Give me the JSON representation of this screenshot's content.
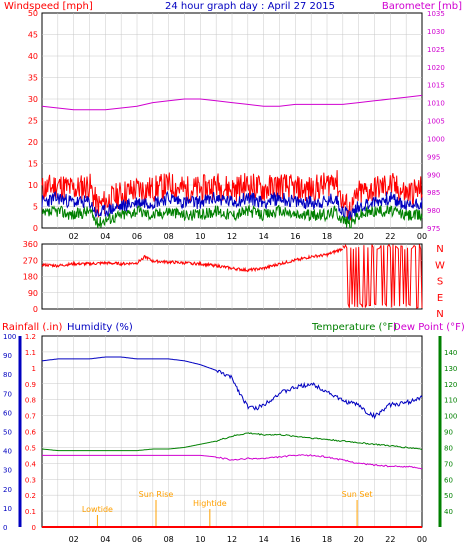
{
  "header": {
    "left": "Windspeed [mph]",
    "center": "24 hour graph day : April 27 2015",
    "right": "Barometer [mb]"
  },
  "colors": {
    "red": "#ff0000",
    "blue": "#0000c0",
    "green": "#008000",
    "magenta": "#d000d0",
    "orange": "#ffa000",
    "grid": "#c8c8c8"
  },
  "chart_data": [
    {
      "type": "line",
      "panel": "wind",
      "title": "24 hour graph day : April 27 2015",
      "x_tick_labels": [
        "02",
        "04",
        "06",
        "08",
        "10",
        "12",
        "14",
        "16",
        "18",
        "20",
        "22",
        "00"
      ],
      "left_axis": {
        "label": "Windspeed [mph]",
        "range": [
          0,
          50
        ],
        "ticks": [
          0,
          5,
          10,
          15,
          20,
          25,
          30,
          35,
          40,
          45,
          50
        ]
      },
      "right_axis": {
        "label": "Barometer [mb]",
        "range": [
          975,
          1035
        ],
        "ticks": [
          975,
          980,
          985,
          990,
          995,
          1000,
          1005,
          1010,
          1015,
          1020,
          1025,
          1030,
          1035
        ]
      },
      "grid": true,
      "series": [
        {
          "name": "",
          "axis": "left",
          "color": "#ff0000",
          "hours": [
            0,
            1,
            2,
            3,
            3.5,
            4,
            5,
            6,
            7,
            8,
            9,
            10,
            11,
            12,
            13,
            14,
            15,
            16,
            17,
            18,
            18.5,
            19,
            19.5,
            20,
            21,
            22,
            23,
            24
          ],
          "values": [
            9,
            10,
            9,
            10,
            5,
            6,
            8,
            9,
            9,
            10,
            9,
            9,
            10,
            9,
            10,
            9,
            10,
            9,
            9,
            10,
            12,
            6,
            4,
            8,
            9,
            10,
            8,
            9
          ]
        },
        {
          "name": "",
          "axis": "left",
          "color": "#0000c0",
          "hours": [
            0,
            1,
            2,
            3,
            3.5,
            4,
            5,
            6,
            7,
            8,
            9,
            10,
            11,
            12,
            13,
            14,
            15,
            16,
            17,
            18,
            18.5,
            19,
            19.5,
            20,
            21,
            22,
            23,
            24
          ],
          "values": [
            6,
            7,
            6,
            6,
            3,
            4,
            5,
            6,
            6,
            7,
            6,
            6,
            7,
            6,
            7,
            6,
            7,
            6,
            6,
            6,
            7,
            4,
            3,
            5,
            6,
            7,
            5,
            6
          ]
        },
        {
          "name": "",
          "axis": "left",
          "color": "#008000",
          "hours": [
            0,
            1,
            2,
            3,
            3.5,
            4,
            5,
            6,
            7,
            8,
            9,
            10,
            11,
            12,
            13,
            14,
            15,
            16,
            17,
            18,
            18.5,
            19,
            19.5,
            20,
            21,
            22,
            23,
            24
          ],
          "values": [
            3,
            4,
            3,
            4,
            1,
            2,
            3,
            4,
            3,
            4,
            3,
            3,
            4,
            3,
            4,
            3,
            4,
            3,
            3,
            3,
            4,
            2,
            1,
            3,
            4,
            4,
            3,
            3
          ]
        },
        {
          "name": "",
          "axis": "right",
          "color": "#d000d0",
          "hours": [
            0,
            1,
            2,
            3,
            4,
            5,
            6,
            7,
            8,
            9,
            10,
            11,
            12,
            13,
            14,
            15,
            16,
            17,
            18,
            19,
            20,
            21,
            22,
            23,
            24
          ],
          "values": [
            1009,
            1008.5,
            1008,
            1008,
            1008,
            1008.5,
            1009,
            1010,
            1010.5,
            1011,
            1011,
            1010.5,
            1010,
            1009.5,
            1009,
            1009,
            1009.5,
            1009.5,
            1009.5,
            1009.5,
            1010,
            1010.5,
            1011,
            1011.5,
            1012
          ]
        }
      ]
    },
    {
      "type": "scatter",
      "panel": "wind-direction",
      "x_tick_labels": [
        "02",
        "04",
        "06",
        "08",
        "10",
        "12",
        "14",
        "16",
        "18",
        "20",
        "22",
        "00"
      ],
      "left_axis": {
        "range": [
          0,
          360
        ],
        "ticks": [
          0,
          90,
          180,
          270,
          360
        ]
      },
      "right_labels": [
        "N",
        "W",
        "S",
        "E",
        "N"
      ],
      "grid": true,
      "series": [
        {
          "name": "",
          "color": "#ff0000",
          "hours": [
            0,
            1,
            2,
            3,
            4,
            5,
            6,
            6.5,
            7,
            8,
            9,
            10,
            11,
            12,
            13,
            14,
            15,
            16,
            17,
            18,
            19
          ],
          "values": [
            245,
            240,
            250,
            250,
            255,
            250,
            255,
            290,
            265,
            260,
            255,
            250,
            240,
            225,
            215,
            225,
            250,
            270,
            290,
            300,
            335
          ]
        }
      ]
    },
    {
      "type": "line",
      "panel": "rain-humidity-temperature",
      "x_tick_labels": [
        "02",
        "04",
        "06",
        "08",
        "10",
        "12",
        "14",
        "16",
        "18",
        "20",
        "22",
        "00"
      ],
      "header": {
        "rain": "Rainfall (.in)",
        "humidity": "Humidity (%)",
        "temperature": "Temperature (°F)",
        "dewpoint": "Dew Point (°F)"
      },
      "rain_axis": {
        "range": [
          0,
          1.2
        ],
        "ticks": [
          "0",
          "0.1",
          "0.2",
          "0.3",
          "0.4",
          "0.5",
          "0.6",
          "0.7",
          "0.8",
          "0.9",
          "1",
          "1.1",
          "1.2"
        ]
      },
      "humidity_axis": {
        "range": [
          0,
          100
        ],
        "ticks": [
          0,
          10,
          20,
          30,
          40,
          50,
          60,
          70,
          80,
          90,
          100
        ]
      },
      "temperature_axis": {
        "range": [
          30,
          150
        ],
        "ticks": [
          40,
          50,
          60,
          70,
          80,
          90,
          100,
          110,
          120,
          130,
          140
        ]
      },
      "grid": true,
      "annotations": [
        {
          "label": "Lowtide",
          "hour": 3.5
        },
        {
          "label": "Sun Rise",
          "hour": 7.2
        },
        {
          "label": "Hightide",
          "hour": 10.6
        },
        {
          "label": "Sun Set",
          "hour": 19.9
        }
      ],
      "series": [
        {
          "name": "Humidity (%)",
          "axis": "humidity",
          "color": "#0000c0",
          "hours": [
            0,
            1,
            2,
            3,
            4,
            5,
            6,
            7,
            8,
            9,
            10,
            11,
            12,
            12.5,
            13,
            13.5,
            14,
            15,
            16,
            17,
            18,
            19,
            20,
            20.5,
            21,
            22,
            23,
            24
          ],
          "values": [
            87,
            88,
            88,
            88,
            89,
            89,
            88,
            88,
            88,
            87,
            85,
            82,
            78,
            70,
            63,
            62,
            64,
            70,
            73,
            75,
            71,
            66,
            64,
            60,
            58,
            64,
            65,
            68
          ]
        },
        {
          "name": "Temperature (°F)",
          "axis": "temperature",
          "color": "#008000",
          "hours": [
            0,
            1,
            2,
            3,
            4,
            5,
            6,
            7,
            8,
            9,
            10,
            11,
            12,
            13,
            14,
            15,
            16,
            17,
            18,
            19,
            20,
            21,
            22,
            23,
            24
          ],
          "values": [
            79,
            78,
            78,
            78,
            78,
            78,
            78,
            79,
            79,
            80,
            82,
            84,
            87,
            89,
            88,
            88,
            87,
            86,
            85,
            84,
            83,
            82,
            81,
            80,
            79
          ]
        },
        {
          "name": "Dew Point (°F)",
          "axis": "temperature",
          "color": "#d000d0",
          "hours": [
            0,
            1,
            2,
            3,
            4,
            5,
            6,
            7,
            8,
            9,
            10,
            11,
            12,
            13,
            14,
            15,
            16,
            17,
            18,
            19,
            20,
            21,
            22,
            23,
            24
          ],
          "values": [
            75,
            75,
            75,
            75,
            75,
            75,
            75,
            75,
            75,
            75,
            75,
            74,
            72,
            73,
            73,
            74,
            75,
            75,
            74,
            72,
            70,
            69,
            68,
            68,
            67
          ]
        },
        {
          "name": "Rainfall (.in)",
          "axis": "rain",
          "color": "#ff0000",
          "hours": [
            0,
            24
          ],
          "values": [
            0,
            0
          ]
        }
      ]
    }
  ]
}
